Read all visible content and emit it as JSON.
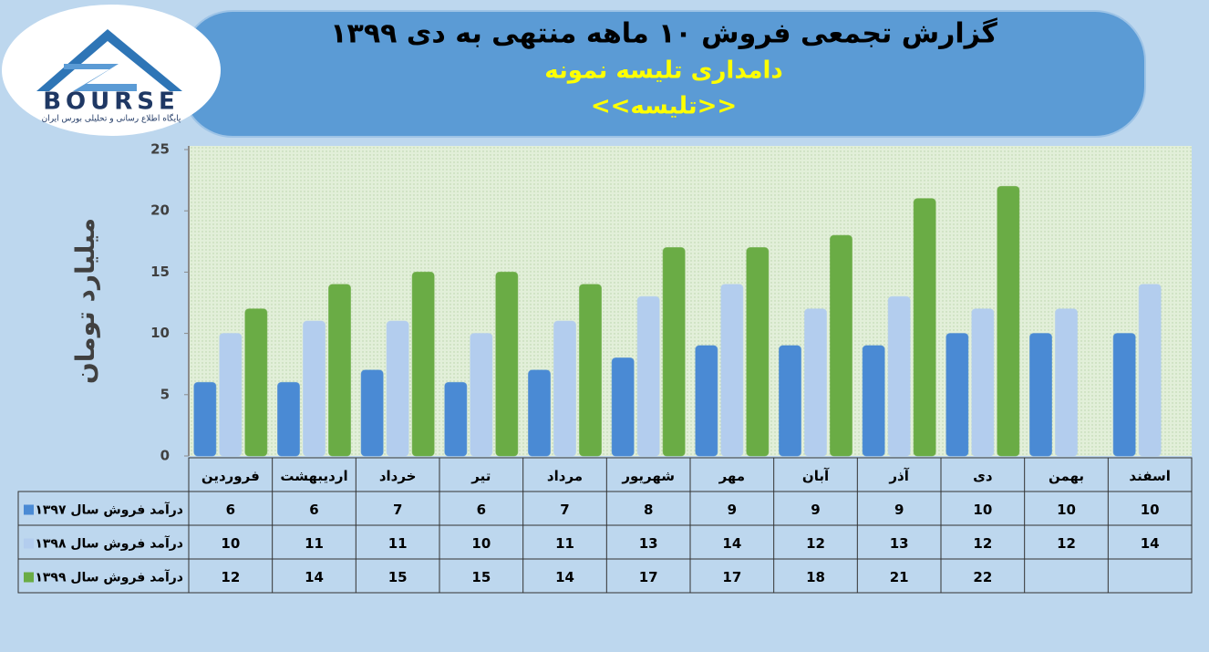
{
  "logo": {
    "name": "BOURSE",
    "tagline": "پایگاه اطلاع رسانی و تحلیلی بورس ایران"
  },
  "chart_data": {
    "type": "bar",
    "title": "گزارش تجمعی فروش ۱۰ ماهه منتهی به دی ۱۳۹۹",
    "subtitle": "دامداری تلیسه نمونه",
    "tag": "<<تلیسه>>",
    "y_label": "میلیارد تومان",
    "categories": [
      "فروردین",
      "اردیبهشت",
      "خرداد",
      "تیر",
      "مرداد",
      "شهریور",
      "مهر",
      "آبان",
      "آذر",
      "دی",
      "بهمن",
      "اسفند"
    ],
    "series": [
      {
        "name": "درآمد فروش سال ۱۳۹۷",
        "color": "#4a8ad4",
        "values": [
          6,
          6,
          7,
          6,
          7,
          8,
          9,
          9,
          9,
          10,
          10,
          10
        ]
      },
      {
        "name": "درآمد فروش سال ۱۳۹۸",
        "color": "#b3cdee",
        "values": [
          10,
          11,
          11,
          10,
          11,
          13,
          14,
          12,
          13,
          12,
          12,
          14
        ]
      },
      {
        "name": "درآمد فروش سال ۱۳۹۹",
        "color": "#6aac45",
        "values": [
          12,
          14,
          15,
          15,
          14,
          17,
          17,
          18,
          21,
          22,
          null,
          null
        ]
      }
    ],
    "ylim": [
      0,
      25
    ],
    "yticks": [
      0,
      5,
      10,
      15,
      20,
      25
    ],
    "grid": false
  }
}
